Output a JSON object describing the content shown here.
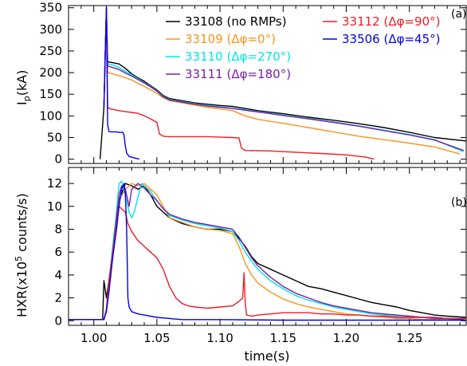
{
  "chart_data": [
    {
      "panel_label": "(a)",
      "type": "line",
      "ylabel": "Ip(kA)",
      "ylabel_main": "I",
      "ylabel_sub": "p",
      "ylabel_unit": "(kA)",
      "xlim": [
        0.98,
        1.295
      ],
      "ylim": [
        -10,
        355
      ],
      "yticks": [
        0,
        50,
        100,
        150,
        200,
        250,
        300,
        350
      ],
      "legend": "top, two columns",
      "series": [
        {
          "name": "33108 (no RMPs)",
          "color": "#000000",
          "x": [
            1.005,
            1.008,
            1.01,
            1.011,
            1.015,
            1.02,
            1.025,
            1.03,
            1.035,
            1.04,
            1.045,
            1.05,
            1.055,
            1.06,
            1.07,
            1.08,
            1.09,
            1.1,
            1.11,
            1.12,
            1.13,
            1.15,
            1.17,
            1.19,
            1.21,
            1.23,
            1.25,
            1.27,
            1.295
          ],
          "y": [
            0,
            120,
            350,
            225,
            223,
            220,
            210,
            197,
            188,
            180,
            170,
            160,
            147,
            140,
            135,
            130,
            127,
            124,
            122,
            117,
            112,
            105,
            97,
            90,
            82,
            73,
            62,
            50,
            42
          ]
        },
        {
          "name": "33109 (Δφ=0°)",
          "color": "#f7941d",
          "x": [
            1.008,
            1.01,
            1.011,
            1.015,
            1.02,
            1.025,
            1.03,
            1.035,
            1.04,
            1.045,
            1.05,
            1.055,
            1.06,
            1.07,
            1.08,
            1.09,
            1.1,
            1.11,
            1.12,
            1.13,
            1.15,
            1.17,
            1.19,
            1.21,
            1.23,
            1.25,
            1.27,
            1.29
          ],
          "y": [
            120,
            350,
            200,
            197,
            193,
            188,
            183,
            175,
            168,
            160,
            152,
            142,
            135,
            130,
            125,
            120,
            116,
            112,
            100,
            92,
            83,
            73,
            63,
            53,
            45,
            37,
            28,
            12
          ]
        },
        {
          "name": "33110 (Δφ=270°)",
          "color": "#00e5e5",
          "x": [
            1.008,
            1.01,
            1.011,
            1.015,
            1.02,
            1.025,
            1.03,
            1.035,
            1.04,
            1.045,
            1.05,
            1.055,
            1.06,
            1.07,
            1.08,
            1.09,
            1.1,
            1.11,
            1.12,
            1.13,
            1.15,
            1.17,
            1.19,
            1.21,
            1.23,
            1.25,
            1.27,
            1.293
          ],
          "y": [
            120,
            350,
            220,
            218,
            212,
            203,
            195,
            186,
            177,
            168,
            158,
            145,
            138,
            133,
            128,
            124,
            121,
            118,
            114,
            110,
            102,
            94,
            86,
            77,
            67,
            57,
            45,
            17
          ]
        },
        {
          "name": "33111 (Δφ=180°)",
          "color": "#7a1fa2",
          "x": [
            1.008,
            1.01,
            1.011,
            1.015,
            1.02,
            1.025,
            1.03,
            1.035,
            1.04,
            1.045,
            1.05,
            1.055,
            1.06,
            1.07,
            1.08,
            1.09,
            1.1,
            1.11,
            1.12,
            1.13,
            1.15,
            1.17,
            1.19,
            1.21,
            1.23,
            1.25,
            1.27,
            1.293
          ],
          "y": [
            120,
            350,
            215,
            212,
            207,
            199,
            192,
            184,
            176,
            167,
            157,
            144,
            137,
            132,
            127,
            123,
            120,
            117,
            113,
            109,
            101,
            93,
            85,
            76,
            66,
            56,
            44,
            20
          ]
        },
        {
          "name": "33112 (Δφ=90°)",
          "color": "#ee1c25",
          "x": [
            1.008,
            1.01,
            1.011,
            1.013,
            1.015,
            1.02,
            1.025,
            1.03,
            1.035,
            1.04,
            1.045,
            1.05,
            1.052,
            1.055,
            1.06,
            1.07,
            1.08,
            1.09,
            1.1,
            1.11,
            1.115,
            1.117,
            1.12,
            1.14,
            1.16,
            1.18,
            1.2,
            1.215,
            1.222
          ],
          "y": [
            120,
            350,
            120,
            116,
            115,
            112,
            110,
            108,
            106,
            100,
            93,
            85,
            58,
            53,
            52,
            52,
            52,
            52,
            51,
            50,
            49,
            25,
            20,
            19,
            16,
            13,
            10,
            5,
            0
          ]
        },
        {
          "name": "33506 (Δφ=45°)",
          "color": "#0000ee",
          "x": [
            1.008,
            1.01,
            1.011,
            1.012,
            1.015,
            1.018,
            1.02,
            1.023,
            1.024,
            1.025,
            1.026,
            1.028,
            1.032,
            1.036
          ],
          "y": [
            120,
            350,
            80,
            64,
            63,
            63,
            62,
            62,
            55,
            30,
            14,
            6,
            3,
            0
          ]
        }
      ]
    },
    {
      "panel_label": "(b)",
      "type": "line",
      "ylabel": "HXR(x10^5 counts/s)",
      "ylabel_main": "HXR(x10",
      "ylabel_sup": "5",
      "ylabel_unit": " counts/s)",
      "xlabel": "time(s)",
      "xlim": [
        0.98,
        1.295
      ],
      "ylim": [
        -0.4,
        13.4
      ],
      "xticks": [
        "1.00",
        "1.05",
        "1.10",
        "1.15",
        "1.20",
        "1.25"
      ],
      "yticks": [
        0,
        2,
        4,
        6,
        8,
        10,
        12
      ],
      "series": [
        {
          "name": "33108 (no RMPs)",
          "color": "#000000",
          "x": [
            0.98,
            1.007,
            1.008,
            1.01,
            1.012,
            1.015,
            1.018,
            1.02,
            1.025,
            1.03,
            1.035,
            1.04,
            1.045,
            1.05,
            1.055,
            1.06,
            1.07,
            1.08,
            1.09,
            1.1,
            1.11,
            1.115,
            1.12,
            1.125,
            1.13,
            1.14,
            1.15,
            1.16,
            1.17,
            1.18,
            1.19,
            1.2,
            1.21,
            1.22,
            1.23,
            1.24,
            1.25,
            1.26,
            1.27,
            1.28,
            1.295
          ],
          "y": [
            0.1,
            0.1,
            3.5,
            2.0,
            3.5,
            6.0,
            8.5,
            10.5,
            12.0,
            11.8,
            11.5,
            11.8,
            11.0,
            10.0,
            9.5,
            9.0,
            8.5,
            8.2,
            8.0,
            8.0,
            7.8,
            7.2,
            6.5,
            5.6,
            5.0,
            4.5,
            4.0,
            3.5,
            3.0,
            2.8,
            2.5,
            2.2,
            1.9,
            1.6,
            1.4,
            1.2,
            0.9,
            0.7,
            0.5,
            0.4,
            0.3
          ]
        },
        {
          "name": "33109 (Δφ=0°)",
          "color": "#f7941d",
          "x": [
            0.98,
            1.008,
            1.01,
            1.012,
            1.015,
            1.018,
            1.02,
            1.025,
            1.03,
            1.035,
            1.04,
            1.045,
            1.05,
            1.055,
            1.06,
            1.07,
            1.08,
            1.09,
            1.1,
            1.11,
            1.115,
            1.12,
            1.125,
            1.13,
            1.14,
            1.15,
            1.16,
            1.17,
            1.18,
            1.19,
            1.2,
            1.21,
            1.22,
            1.23,
            1.24,
            1.25,
            1.26,
            1.27,
            1.295
          ],
          "y": [
            0.1,
            0.1,
            1.0,
            3.0,
            5.5,
            8.5,
            10.5,
            11.5,
            12.0,
            11.8,
            12.0,
            11.5,
            11.0,
            10.0,
            9.0,
            8.6,
            8.2,
            8.0,
            7.9,
            7.6,
            6.5,
            5.0,
            4.0,
            3.3,
            2.5,
            1.9,
            1.5,
            1.2,
            1.0,
            0.8,
            0.6,
            0.5,
            0.4,
            0.3,
            0.2,
            0.2,
            0.1,
            0.1,
            0.1
          ]
        },
        {
          "name": "33110 (Δφ=270°)",
          "color": "#00e5e5",
          "x": [
            0.98,
            1.008,
            1.01,
            1.012,
            1.015,
            1.018,
            1.02,
            1.022,
            1.025,
            1.028,
            1.03,
            1.032,
            1.035,
            1.038,
            1.04,
            1.045,
            1.05,
            1.055,
            1.06,
            1.07,
            1.08,
            1.09,
            1.1,
            1.11,
            1.115,
            1.12,
            1.125,
            1.13,
            1.14,
            1.15,
            1.16,
            1.17,
            1.18,
            1.19,
            1.2,
            1.21,
            1.22,
            1.23,
            1.24,
            1.25,
            1.26,
            1.27,
            1.28,
            1.293
          ],
          "y": [
            0.1,
            0.1,
            1.0,
            3.5,
            6.5,
            9.5,
            12.0,
            12.2,
            11.0,
            9.5,
            9.0,
            9.5,
            10.8,
            12.0,
            11.8,
            11.3,
            10.5,
            9.8,
            9.2,
            8.8,
            8.5,
            8.3,
            8.1,
            7.8,
            7.0,
            6.0,
            5.2,
            4.5,
            3.5,
            2.8,
            2.2,
            1.8,
            1.5,
            1.2,
            1.0,
            0.8,
            0.6,
            0.5,
            0.4,
            0.3,
            0.3,
            0.2,
            0.2,
            0.1
          ]
        },
        {
          "name": "33111 (Δφ=180°)",
          "color": "#7a1fa2",
          "x": [
            0.98,
            1.008,
            1.01,
            1.012,
            1.015,
            1.018,
            1.02,
            1.022,
            1.025,
            1.028,
            1.03,
            1.035,
            1.04,
            1.045,
            1.05,
            1.055,
            1.06,
            1.07,
            1.08,
            1.09,
            1.1,
            1.11,
            1.115,
            1.12,
            1.125,
            1.13,
            1.14,
            1.15,
            1.16,
            1.17,
            1.18,
            1.19,
            1.2,
            1.21,
            1.22,
            1.23,
            1.24,
            1.25,
            1.26,
            1.27,
            1.28,
            1.293
          ],
          "y": [
            0.1,
            0.1,
            1.0,
            3.0,
            6.0,
            9.0,
            11.0,
            11.8,
            11.5,
            10.0,
            11.5,
            12.0,
            11.6,
            11.0,
            10.5,
            9.8,
            9.3,
            8.9,
            8.6,
            8.4,
            8.2,
            8.0,
            7.3,
            6.4,
            5.5,
            4.8,
            3.8,
            3.0,
            2.4,
            2.0,
            1.6,
            1.3,
            1.1,
            0.9,
            0.7,
            0.6,
            0.5,
            0.4,
            0.3,
            0.3,
            0.2,
            0.1
          ]
        },
        {
          "name": "33112 (Δφ=90°)",
          "color": "#ee1c25",
          "x": [
            0.98,
            1.008,
            1.01,
            1.012,
            1.015,
            1.018,
            1.02,
            1.022,
            1.025,
            1.027,
            1.03,
            1.035,
            1.04,
            1.045,
            1.05,
            1.055,
            1.06,
            1.065,
            1.07,
            1.075,
            1.08,
            1.09,
            1.1,
            1.11,
            1.115,
            1.118,
            1.119,
            1.12,
            1.121,
            1.125,
            1.13,
            1.14,
            1.15,
            1.16,
            1.17,
            1.18,
            1.19,
            1.2,
            1.21,
            1.22,
            1.23,
            1.24,
            1.25,
            1.26,
            1.27,
            1.28,
            1.295
          ],
          "y": [
            0.1,
            0.1,
            1.0,
            3.5,
            6.0,
            8.5,
            10.0,
            9.8,
            9.5,
            8.5,
            7.8,
            7.0,
            6.5,
            6.0,
            5.5,
            4.5,
            3.0,
            2.0,
            1.5,
            1.3,
            1.2,
            1.1,
            1.2,
            1.3,
            1.7,
            2.0,
            4.2,
            1.5,
            0.5,
            0.4,
            0.5,
            0.6,
            0.7,
            0.7,
            0.7,
            0.6,
            0.6,
            0.5,
            0.5,
            0.4,
            0.4,
            0.3,
            0.3,
            0.3,
            0.2,
            0.2,
            0.2
          ]
        },
        {
          "name": "33506 (Δφ=45°)",
          "color": "#0000ee",
          "x": [
            0.98,
            1.008,
            1.01,
            1.012,
            1.015,
            1.018,
            1.02,
            1.022,
            1.024,
            1.025,
            1.026,
            1.027,
            1.028,
            1.03,
            1.035,
            1.04,
            1.05,
            1.06,
            1.07,
            1.1,
            1.15,
            1.2,
            1.25,
            1.295
          ],
          "y": [
            0.1,
            0.1,
            0.8,
            2.5,
            5.5,
            8.0,
            10.0,
            11.5,
            12.0,
            11.0,
            8.0,
            2.0,
            1.2,
            0.8,
            0.6,
            0.5,
            0.3,
            0.2,
            0.1,
            0.1,
            0.05,
            0.05,
            0.05,
            0.05
          ]
        }
      ]
    }
  ],
  "legend_order": [
    {
      "series": 0,
      "col": 0,
      "row": 0
    },
    {
      "series": 1,
      "col": 0,
      "row": 1
    },
    {
      "series": 2,
      "col": 0,
      "row": 2
    },
    {
      "series": 3,
      "col": 0,
      "row": 3
    },
    {
      "series": 4,
      "col": 1,
      "row": 0
    },
    {
      "series": 5,
      "col": 1,
      "row": 1
    }
  ]
}
